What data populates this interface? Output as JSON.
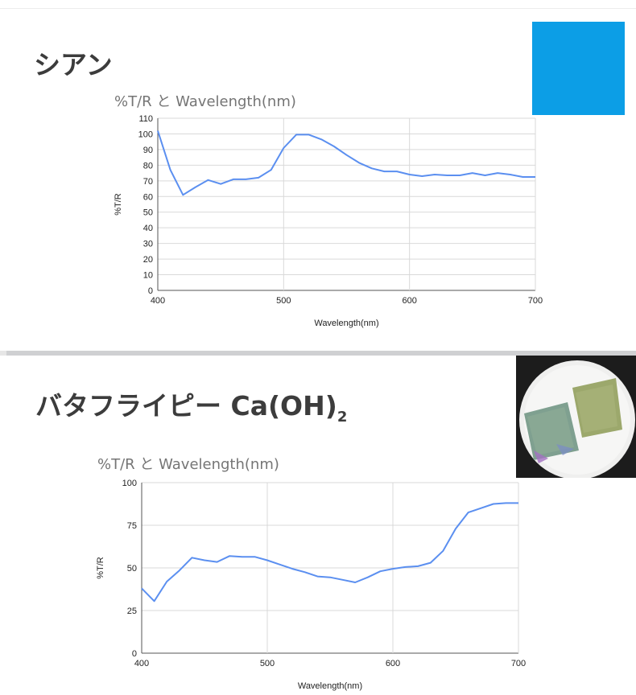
{
  "slides": [
    {
      "title": "シアン",
      "swatch_color": "#0c9ee6"
    },
    {
      "title": "バタフライピー Ca(OH)",
      "title_subscript": "2",
      "photo_icon": "fabric-samples-photo"
    }
  ],
  "chart_data": [
    {
      "type": "line",
      "title": "%T/R と Wavelength(nm)",
      "xlabel": "Wavelength(nm)",
      "ylabel": "%T/R",
      "xlim": [
        400,
        700
      ],
      "ylim": [
        0,
        110
      ],
      "xticks": [
        "400",
        "500",
        "600",
        "700"
      ],
      "yticks": [
        "0",
        "10",
        "20",
        "30",
        "40",
        "50",
        "60",
        "70",
        "80",
        "90",
        "100",
        "110"
      ],
      "grid": true,
      "line_color": "#5b8ff0",
      "x": [
        400,
        410,
        420,
        430,
        440,
        450,
        460,
        470,
        480,
        490,
        500,
        510,
        520,
        530,
        540,
        550,
        560,
        570,
        580,
        590,
        600,
        610,
        620,
        630,
        640,
        650,
        660,
        670,
        680,
        690,
        700
      ],
      "y": [
        102,
        77,
        61,
        66,
        70.5,
        68,
        71,
        71,
        72,
        77,
        91,
        99.5,
        99.5,
        96.5,
        92,
        86.5,
        81.5,
        78,
        76,
        76,
        74,
        73,
        74,
        73.5,
        73.5,
        75,
        73.5,
        75,
        74,
        72.5,
        72.5
      ]
    },
    {
      "type": "line",
      "title": "%T/R と Wavelength(nm)",
      "xlabel": "Wavelength(nm)",
      "ylabel": "%T/R",
      "xlim": [
        400,
        700
      ],
      "ylim": [
        0,
        100
      ],
      "xticks": [
        "400",
        "500",
        "600",
        "700"
      ],
      "yticks": [
        "0",
        "25",
        "50",
        "75",
        "100"
      ],
      "grid": true,
      "line_color": "#5b8ff0",
      "x": [
        400,
        410,
        420,
        430,
        440,
        450,
        460,
        470,
        480,
        490,
        500,
        510,
        520,
        530,
        540,
        550,
        560,
        570,
        580,
        590,
        600,
        610,
        620,
        630,
        640,
        650,
        660,
        670,
        680,
        690,
        700
      ],
      "y": [
        38,
        30.5,
        42,
        48.5,
        56,
        54.5,
        53.5,
        57,
        56.5,
        56.5,
        54.5,
        52,
        49.5,
        47.5,
        45,
        44.5,
        43,
        41.5,
        44.5,
        48,
        49.5,
        50.5,
        51,
        53,
        60,
        73,
        82.5,
        85,
        87.5,
        88,
        88
      ]
    }
  ]
}
